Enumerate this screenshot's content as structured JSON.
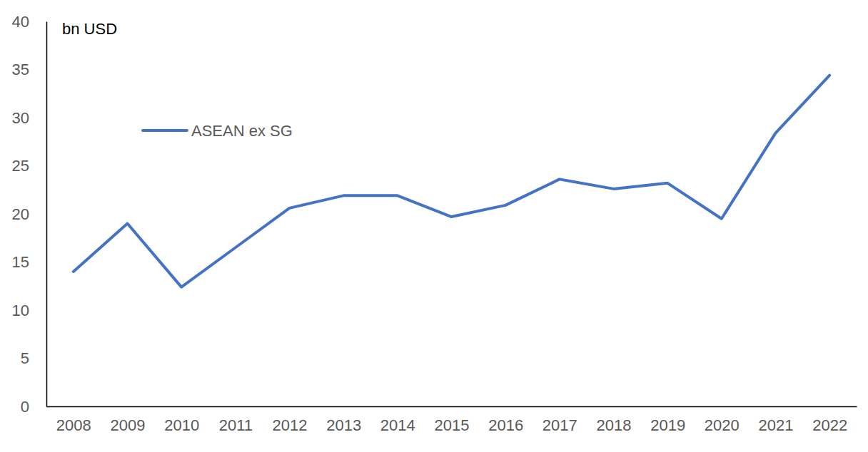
{
  "chart_data": {
    "type": "line",
    "y_label": "bn USD",
    "categories": [
      "2008",
      "2009",
      "2010",
      "2011",
      "2012",
      "2013",
      "2014",
      "2015",
      "2016",
      "2017",
      "2018",
      "2019",
      "2020",
      "2021",
      "2022"
    ],
    "series": [
      {
        "name": "ASEAN ex SG",
        "color": "#4472c4",
        "values": [
          14.0,
          19.0,
          12.4,
          16.5,
          20.6,
          21.9,
          21.9,
          19.7,
          20.9,
          23.6,
          22.6,
          23.2,
          19.5,
          28.4,
          34.4
        ]
      }
    ],
    "ylim": [
      0,
      40
    ],
    "yticks": [
      0,
      5,
      10,
      15,
      20,
      25,
      30,
      35,
      40
    ],
    "grid": false,
    "legend": "upper left"
  }
}
